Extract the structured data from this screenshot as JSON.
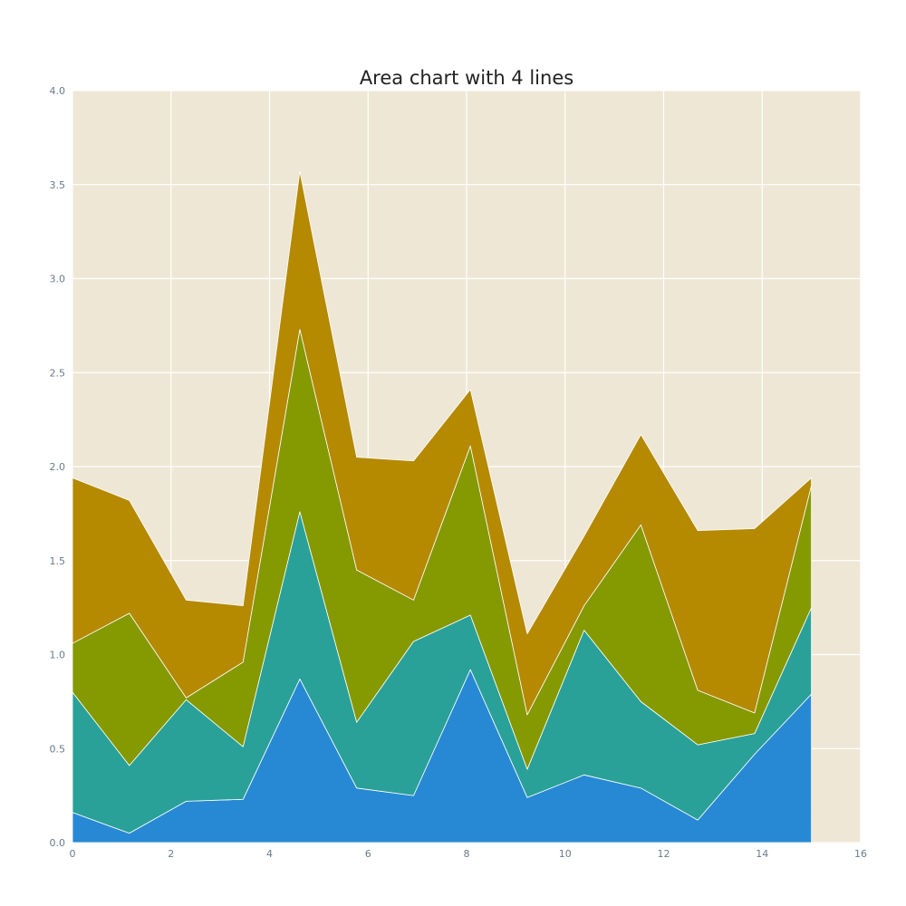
{
  "chart_data": {
    "type": "area",
    "stacked": true,
    "title": "Area chart with 4 lines",
    "xlabel": "",
    "ylabel": "",
    "xlim": [
      0,
      16
    ],
    "ylim": [
      0,
      4
    ],
    "x_ticks": [
      "0",
      "2",
      "4",
      "6",
      "8",
      "10",
      "12",
      "14",
      "16"
    ],
    "y_ticks": [
      "0.0",
      "0.5",
      "1.0",
      "1.5",
      "2.0",
      "2.5",
      "3.0",
      "3.5",
      "4.0"
    ],
    "grid": true,
    "legend": "none",
    "background_color": "#efe7d5",
    "grid_color": "#ffffff",
    "x": [
      0,
      1.154,
      2.308,
      3.462,
      4.615,
      5.769,
      6.923,
      8.077,
      9.231,
      10.385,
      11.538,
      12.692,
      13.846,
      15.0
    ],
    "series": [
      {
        "color": "#2789d4",
        "values": [
          0.16,
          0.05,
          0.22,
          0.23,
          0.87,
          0.29,
          0.25,
          0.92,
          0.24,
          0.36,
          0.29,
          0.12,
          0.47,
          0.79
        ]
      },
      {
        "color": "#2aa198",
        "values": [
          0.64,
          0.36,
          0.54,
          0.28,
          0.89,
          0.35,
          0.82,
          0.29,
          0.15,
          0.77,
          0.46,
          0.4,
          0.11,
          0.46
        ]
      },
      {
        "color": "#859900",
        "values": [
          0.26,
          0.81,
          0.01,
          0.45,
          0.97,
          0.81,
          0.22,
          0.9,
          0.29,
          0.13,
          0.94,
          0.29,
          0.11,
          0.65
        ]
      },
      {
        "color": "#b58900",
        "values": [
          0.88,
          0.6,
          0.52,
          0.3,
          0.84,
          0.6,
          0.74,
          0.3,
          0.43,
          0.37,
          0.48,
          0.85,
          0.98,
          0.04
        ]
      }
    ]
  }
}
